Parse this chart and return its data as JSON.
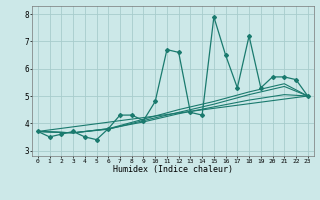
{
  "title": "",
  "xlabel": "Humidex (Indice chaleur)",
  "bg_color": "#cce8e8",
  "line_color": "#1a7a6e",
  "grid_color": "#a8cccc",
  "xlim": [
    -0.5,
    23.5
  ],
  "ylim": [
    2.8,
    8.3
  ],
  "xticks": [
    0,
    1,
    2,
    3,
    4,
    5,
    6,
    7,
    8,
    9,
    10,
    11,
    12,
    13,
    14,
    15,
    16,
    17,
    18,
    19,
    20,
    21,
    22,
    23
  ],
  "yticks": [
    3,
    4,
    5,
    6,
    7,
    8
  ],
  "series": [
    [
      0,
      3.7
    ],
    [
      1,
      3.5
    ],
    [
      2,
      3.6
    ],
    [
      3,
      3.7
    ],
    [
      4,
      3.5
    ],
    [
      5,
      3.4
    ],
    [
      6,
      3.8
    ],
    [
      7,
      4.3
    ],
    [
      8,
      4.3
    ],
    [
      9,
      4.1
    ],
    [
      10,
      4.8
    ],
    [
      11,
      6.7
    ],
    [
      12,
      6.6
    ],
    [
      13,
      4.4
    ],
    [
      14,
      4.3
    ],
    [
      15,
      7.9
    ],
    [
      16,
      6.5
    ],
    [
      17,
      5.3
    ],
    [
      18,
      7.2
    ],
    [
      19,
      5.3
    ],
    [
      20,
      5.7
    ],
    [
      21,
      5.7
    ],
    [
      22,
      5.6
    ],
    [
      23,
      5.0
    ]
  ],
  "trend_line": [
    [
      0,
      3.7
    ],
    [
      23,
      5.0
    ]
  ],
  "smooth_lines": [
    [
      [
        0,
        3.7
      ],
      [
        3,
        3.65
      ],
      [
        6,
        3.8
      ],
      [
        9,
        4.05
      ],
      [
        12,
        4.35
      ],
      [
        15,
        4.6
      ],
      [
        18,
        4.85
      ],
      [
        21,
        5.05
      ],
      [
        23,
        5.0
      ]
    ],
    [
      [
        0,
        3.7
      ],
      [
        3,
        3.65
      ],
      [
        6,
        3.78
      ],
      [
        9,
        4.1
      ],
      [
        12,
        4.4
      ],
      [
        15,
        4.7
      ],
      [
        18,
        5.05
      ],
      [
        21,
        5.35
      ],
      [
        23,
        5.0
      ]
    ],
    [
      [
        0,
        3.7
      ],
      [
        3,
        3.65
      ],
      [
        6,
        3.8
      ],
      [
        9,
        4.15
      ],
      [
        12,
        4.5
      ],
      [
        15,
        4.8
      ],
      [
        18,
        5.15
      ],
      [
        21,
        5.45
      ],
      [
        23,
        5.0
      ]
    ]
  ]
}
